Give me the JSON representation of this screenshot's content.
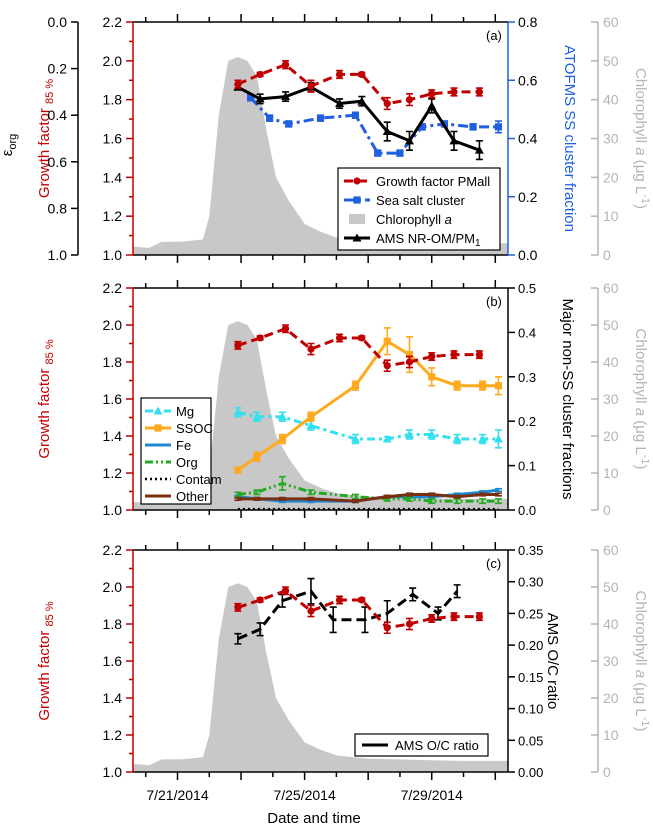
{
  "x_axis": {
    "label": "Date and time",
    "ticks": [
      "7/21/2014",
      "7/25/2014",
      "7/29/2014"
    ],
    "tick_days": [
      0,
      4,
      8
    ],
    "xlim": [
      -1.4,
      10.4
    ]
  },
  "colors": {
    "gf": "#c00000",
    "ss_blue": "#1f5fe0",
    "chl": "#c8c8c8",
    "chl_axis": "#b4b4b4",
    "black": "#000000",
    "mg": "#33e0f0",
    "ssoc": "#ffaa1e",
    "fe": "#1e87d2",
    "org": "#22aa22",
    "other": "#7a3010"
  },
  "chart_data": [
    {
      "type": "line",
      "panel_label": "(a)",
      "left_axis_outer": {
        "label": "ε",
        "label_sub": "org",
        "ylim": [
          1.0,
          0.0
        ],
        "ticks": [
          "0.0",
          "0.2",
          "0.4",
          "0.6",
          "0.8",
          "1.0"
        ]
      },
      "left_axis": {
        "label": "Growth factor",
        "label_sub": "85 %",
        "ylim": [
          1.0,
          2.2
        ],
        "ticks": [
          "1.0",
          "1.2",
          "1.4",
          "1.6",
          "1.8",
          "2.0",
          "2.2"
        ]
      },
      "right_axis": {
        "label": "ATOFMS SS cluster fraction",
        "ylim": [
          0,
          0.8
        ],
        "ticks": [
          "0.0",
          "0.2",
          "0.4",
          "0.6",
          "0.8"
        ]
      },
      "right_axis_outer": {
        "label": "Chlorophyll",
        "label_italic": "a",
        "label_unit": "(μg L",
        "label_unit_sup": "-1",
        "label_close": ")",
        "ylim": [
          0,
          60
        ],
        "ticks": [
          "0",
          "10",
          "20",
          "30",
          "40",
          "50",
          "60"
        ]
      },
      "legend": [
        "Growth factor PMall",
        "Sea salt cluster",
        "Chlorophyll a",
        "AMS NR-OM/PM1"
      ],
      "series": [
        {
          "name": "Growth factor PMall",
          "axis": "left",
          "x": [
            1.9,
            2.6,
            3.4,
            4.2,
            5.1,
            5.8,
            6.6,
            7.3,
            8.0,
            8.7,
            9.5
          ],
          "y": [
            1.88,
            1.93,
            1.98,
            1.87,
            1.93,
            1.93,
            1.78,
            1.8,
            1.83,
            1.84,
            1.84
          ],
          "err": [
            0.02,
            0.01,
            0.02,
            0.03,
            0.02,
            0.01,
            0.03,
            0.03,
            0.02,
            0.02,
            0.02
          ]
        },
        {
          "name": "Sea salt cluster",
          "axis": "right",
          "x": [
            2.3,
            2.9,
            3.5,
            4.5,
            5.6,
            6.3,
            7.0,
            7.7,
            8.4,
            9.3,
            10.1
          ],
          "y": [
            0.54,
            0.47,
            0.45,
            0.47,
            0.48,
            0.35,
            0.35,
            0.44,
            0.45,
            0.44,
            0.44
          ],
          "err": [
            0.01,
            0.01,
            0.01,
            0.01,
            0.01,
            0.01,
            0.01,
            0.01,
            0.01,
            0.01,
            0.02
          ]
        },
        {
          "name": "AMS NR-OM/PM1",
          "axis": "left_outer",
          "x": [
            1.9,
            2.6,
            3.4,
            4.2,
            5.1,
            5.8,
            6.6,
            7.3,
            8.0,
            8.7,
            9.5
          ],
          "y": [
            0.28,
            0.33,
            0.32,
            0.28,
            0.35,
            0.34,
            0.47,
            0.51,
            0.36,
            0.51,
            0.55
          ],
          "err": [
            0.01,
            0.02,
            0.02,
            0.02,
            0.02,
            0.02,
            0.04,
            0.04,
            0.03,
            0.04,
            0.04
          ]
        }
      ]
    },
    {
      "type": "line",
      "panel_label": "(b)",
      "left_axis": {
        "label": "Growth factor",
        "label_sub": "85 %",
        "ylim": [
          1.0,
          2.2
        ],
        "ticks": [
          "1.0",
          "1.2",
          "1.4",
          "1.6",
          "1.8",
          "2.0",
          "2.2"
        ]
      },
      "right_axis": {
        "label": "Major non-SS cluster fractions",
        "ylim": [
          0,
          0.5
        ],
        "ticks": [
          "0.0",
          "0.1",
          "0.2",
          "0.3",
          "0.4",
          "0.5"
        ]
      },
      "right_axis_outer": {
        "label": "Chlorophyll",
        "label_italic": "a",
        "label_unit": "(μg L",
        "label_unit_sup": "-1",
        "label_close": ")",
        "ylim": [
          0,
          60
        ],
        "ticks": [
          "0",
          "10",
          "20",
          "30",
          "40",
          "50",
          "60"
        ]
      },
      "legend": [
        "Mg",
        "SSOC",
        "Fe",
        "Org",
        "Contam",
        "Other"
      ],
      "series": [
        {
          "name": "Growth factor",
          "axis": "left",
          "x": [
            1.9,
            2.6,
            3.4,
            4.2,
            5.1,
            5.8,
            6.6,
            7.3,
            8.0,
            8.7,
            9.5
          ],
          "y": [
            1.89,
            1.93,
            1.98,
            1.87,
            1.93,
            1.93,
            1.78,
            1.8,
            1.83,
            1.84,
            1.84
          ],
          "err": [
            0.02,
            0.01,
            0.02,
            0.03,
            0.02,
            0.01,
            0.03,
            0.03,
            0.02,
            0.02,
            0.02
          ]
        },
        {
          "name": "Mg",
          "axis": "right",
          "x": [
            1.9,
            2.5,
            3.3,
            4.2,
            5.6,
            6.6,
            7.3,
            8.0,
            8.8,
            9.6,
            10.1
          ],
          "y": [
            0.22,
            0.21,
            0.21,
            0.19,
            0.16,
            0.16,
            0.17,
            0.17,
            0.16,
            0.16,
            0.16
          ],
          "err": [
            0.01,
            0.01,
            0.01,
            0.01,
            0.01,
            0.005,
            0.01,
            0.01,
            0.01,
            0.01,
            0.02
          ]
        },
        {
          "name": "SSOC",
          "axis": "right",
          "x": [
            1.9,
            2.5,
            3.3,
            4.2,
            5.6,
            6.6,
            7.3,
            8.0,
            8.8,
            9.6,
            10.1
          ],
          "y": [
            0.09,
            0.12,
            0.16,
            0.21,
            0.28,
            0.38,
            0.35,
            0.3,
            0.28,
            0.28,
            0.28
          ],
          "err": [
            0.005,
            0.01,
            0.01,
            0.01,
            0.01,
            0.03,
            0.04,
            0.02,
            0.01,
            0.01,
            0.02
          ]
        },
        {
          "name": "Fe",
          "axis": "right",
          "x": [
            1.9,
            2.5,
            3.3,
            4.2,
            5.6,
            6.6,
            7.3,
            8.0,
            8.8,
            9.6,
            10.1
          ],
          "y": [
            0.03,
            0.025,
            0.02,
            0.02,
            0.02,
            0.03,
            0.03,
            0.03,
            0.035,
            0.04,
            0.045
          ],
          "err": [
            0.003,
            0.003,
            0.003,
            0.003,
            0.003,
            0.003,
            0.003,
            0.003,
            0.003,
            0.003,
            0.003
          ]
        },
        {
          "name": "Org",
          "axis": "right",
          "x": [
            1.9,
            2.5,
            3.3,
            4.2,
            5.6,
            6.6,
            7.3,
            8.0,
            8.8,
            9.6,
            10.1
          ],
          "y": [
            0.035,
            0.04,
            0.06,
            0.04,
            0.03,
            0.025,
            0.025,
            0.02,
            0.02,
            0.02,
            0.02
          ],
          "err": [
            0.005,
            0.005,
            0.015,
            0.005,
            0.005,
            0.005,
            0.005,
            0.005,
            0.005,
            0.005,
            0.005
          ]
        },
        {
          "name": "Contam",
          "axis": "right",
          "x": [
            1.9,
            2.5,
            3.3,
            4.2,
            5.6,
            6.6,
            7.3,
            8.0,
            8.8,
            9.6,
            10.1
          ],
          "y": [
            0.002,
            0.002,
            0.002,
            0.002,
            0.002,
            0.002,
            0.002,
            0.002,
            0.002,
            0.002,
            0.002
          ],
          "err": []
        },
        {
          "name": "Other",
          "axis": "right",
          "x": [
            1.9,
            2.5,
            3.3,
            4.2,
            5.6,
            6.6,
            7.3,
            8.0,
            8.8,
            9.6,
            10.1
          ],
          "y": [
            0.025,
            0.025,
            0.025,
            0.025,
            0.02,
            0.03,
            0.035,
            0.035,
            0.03,
            0.035,
            0.035
          ],
          "err": [
            0.003,
            0.003,
            0.003,
            0.003,
            0.003,
            0.003,
            0.003,
            0.003,
            0.003,
            0.003,
            0.003
          ]
        }
      ]
    },
    {
      "type": "line",
      "panel_label": "(c)",
      "left_axis": {
        "label": "Growth factor",
        "label_sub": "85 %",
        "ylim": [
          1.0,
          2.2
        ],
        "ticks": [
          "1.0",
          "1.2",
          "1.4",
          "1.6",
          "1.8",
          "2.0",
          "2.2"
        ]
      },
      "right_axis": {
        "label": "AMS O/C ratio",
        "ylim": [
          0,
          0.35
        ],
        "ticks": [
          "0.00",
          "0.05",
          "0.10",
          "0.15",
          "0.20",
          "0.25",
          "0.30",
          "0.35"
        ]
      },
      "right_axis_outer": {
        "label": "Chlorophyll",
        "label_italic": "a",
        "label_unit": "(μg L",
        "label_unit_sup": "-1",
        "label_close": ")",
        "ylim": [
          0,
          60
        ],
        "ticks": [
          "0",
          "10",
          "20",
          "30",
          "40",
          "50",
          "60"
        ]
      },
      "legend": [
        "AMS O/C ratio"
      ],
      "series": [
        {
          "name": "Growth factor",
          "axis": "left",
          "x": [
            1.9,
            2.6,
            3.4,
            4.2,
            5.1,
            5.8,
            6.6,
            7.3,
            8.0,
            8.7,
            9.5
          ],
          "y": [
            1.89,
            1.93,
            1.98,
            1.87,
            1.93,
            1.93,
            1.78,
            1.8,
            1.83,
            1.84,
            1.84
          ],
          "err": [
            0.02,
            0.01,
            0.02,
            0.03,
            0.02,
            0.01,
            0.03,
            0.03,
            0.02,
            0.02,
            0.02
          ]
        },
        {
          "name": "AMS O/C ratio",
          "axis": "right",
          "x": [
            1.9,
            2.6,
            3.3,
            4.2,
            4.9,
            5.9,
            6.6,
            7.4,
            8.2,
            8.8
          ],
          "y": [
            0.21,
            0.225,
            0.27,
            0.285,
            0.24,
            0.24,
            0.25,
            0.28,
            0.25,
            0.285
          ],
          "err": [
            0.008,
            0.01,
            0.01,
            0.02,
            0.02,
            0.02,
            0.02,
            0.01,
            0.01,
            0.01
          ]
        }
      ],
      "chlorophyll": {
        "x": [
          -1.4,
          -0.9,
          -0.5,
          0.1,
          0.8,
          1.0,
          1.3,
          1.6,
          1.9,
          2.2,
          2.5,
          2.8,
          3.1,
          3.5,
          4.0,
          4.5,
          5.0,
          6.0,
          7.0,
          8.0,
          9.0,
          10.4
        ],
        "y": [
          2.2,
          1.8,
          3.4,
          3.4,
          4.0,
          10,
          36,
          50,
          51,
          50,
          46,
          32,
          20,
          14,
          8,
          6,
          4.5,
          3.6,
          3.4,
          3.2,
          3.0,
          3.0
        ]
      }
    }
  ]
}
